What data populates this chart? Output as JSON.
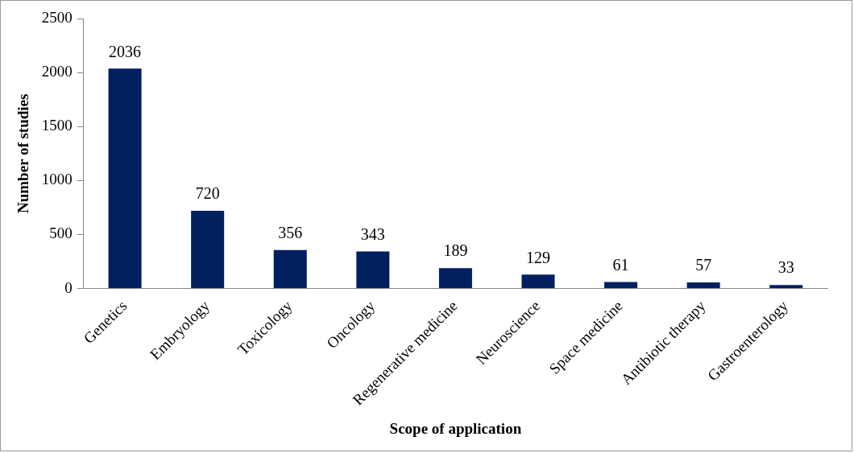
{
  "chart_data": {
    "type": "bar",
    "xlabel": "Scope of application",
    "ylabel": "Number of studies",
    "categories": [
      "Genetics",
      "Embryology",
      "Toxicology",
      "Oncology",
      "Regenerative medicine",
      "Neuroscience",
      "Space medicine",
      "Antibiotic therapy",
      "Gastroenterology"
    ],
    "values": [
      2036,
      720,
      356,
      343,
      189,
      129,
      61,
      57,
      33
    ],
    "color": "#002060",
    "ylim": [
      0,
      2500
    ],
    "yticks": [
      0,
      500,
      1000,
      1500,
      2000,
      2500
    ],
    "grid": false,
    "legend": false,
    "data_labels": true
  }
}
